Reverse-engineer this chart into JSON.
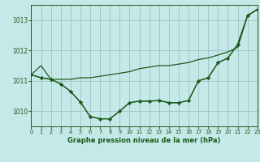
{
  "title": "Graphe pression niveau de la mer (hPa)",
  "background_color": "#c5e8e8",
  "grid_color": "#a0c8c8",
  "line_color": "#1a5c1a",
  "xlim": [
    0,
    23
  ],
  "ylim": [
    1009.5,
    1013.5
  ],
  "yticks": [
    1010,
    1011,
    1012,
    1013
  ],
  "xticks": [
    0,
    1,
    2,
    3,
    4,
    5,
    6,
    7,
    8,
    9,
    10,
    11,
    12,
    13,
    14,
    15,
    16,
    17,
    18,
    19,
    20,
    21,
    22,
    23
  ],
  "s1": [
    1011.2,
    1011.5,
    1011.05,
    1011.05,
    1011.05,
    1011.1,
    1011.1,
    1011.15,
    1011.2,
    1011.25,
    1011.3,
    1011.4,
    1011.45,
    1011.5,
    1011.5,
    1011.55,
    1011.6,
    1011.7,
    1011.75,
    1011.85,
    1011.95,
    1012.1,
    1013.15,
    1013.35
  ],
  "s2": [
    1011.2,
    1011.1,
    1011.05,
    1010.9,
    1010.65,
    1010.3,
    1009.82,
    1009.75,
    1009.75,
    1010.0,
    1010.28,
    1010.33,
    1010.33,
    1010.35,
    1010.28,
    1010.28,
    1010.35,
    1011.0,
    1011.1,
    1011.6,
    1011.75,
    1012.2,
    1013.15,
    1013.35
  ],
  "s3": [
    1011.2,
    1011.1,
    1011.05,
    1010.9,
    1010.65,
    1010.3,
    1009.82,
    1009.75,
    1009.75,
    1010.0,
    1010.28,
    1010.33,
    1010.33,
    1010.35,
    1010.28,
    1010.28,
    1010.35,
    1011.0,
    1011.1,
    1011.6,
    1011.75,
    1012.2,
    1013.15,
    1013.35
  ],
  "figwidth": 3.2,
  "figheight": 2.0,
  "dpi": 100
}
